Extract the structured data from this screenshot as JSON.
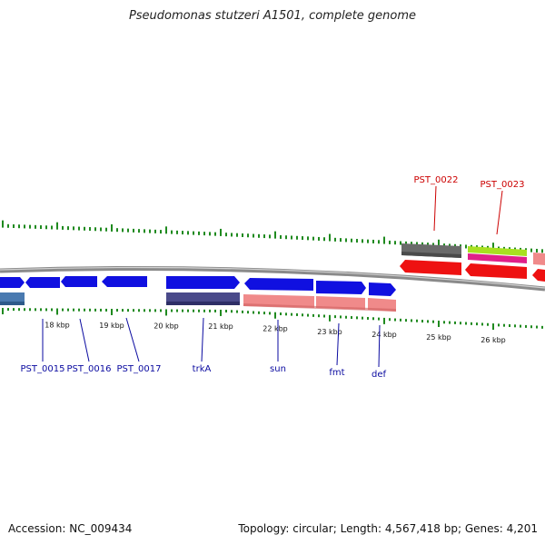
{
  "header": {
    "title": "Pseudomonas stutzeri A1501, complete genome"
  },
  "footer": {
    "accession_label": "Accession:",
    "accession": "NC_009434",
    "topology_label": "Topology:",
    "topology": "circular",
    "length_label": "Length:",
    "length": "4,567,418 bp",
    "genes_label": "Genes:",
    "genes": "4,201"
  },
  "colors": {
    "backbone": "#8a8a8a",
    "tick": "#1f8a1f",
    "forward_cds": "#1010e0",
    "reverse_cds": "#ee1111",
    "rna_pink": "#f08a8a",
    "label_forward": "#0a0aa0",
    "label_reverse": "#cc0000",
    "gray_feature": "#6a6a6a",
    "slate_feature": "#4a4a8a",
    "steel_feature": "#4a7ab0",
    "lime_feature": "#a8e020",
    "magenta_feature": "#e0208a"
  },
  "scale": {
    "tick_labels": [
      {
        "kbp": 18,
        "text": "18 kbp"
      },
      {
        "kbp": 19,
        "text": "19 kbp"
      },
      {
        "kbp": 20,
        "text": "20 kbp"
      },
      {
        "kbp": 21,
        "text": "21 kbp"
      },
      {
        "kbp": 22,
        "text": "22 kbp"
      },
      {
        "kbp": 23,
        "text": "23 kbp"
      },
      {
        "kbp": 24,
        "text": "24 kbp"
      },
      {
        "kbp": 25,
        "text": "25 kbp"
      },
      {
        "kbp": 26,
        "text": "26 kbp"
      }
    ]
  },
  "gene_labels": {
    "forward": [
      {
        "name": "PST_0015"
      },
      {
        "name": "PST_0016"
      },
      {
        "name": "PST_0017"
      },
      {
        "name": "trkA"
      },
      {
        "name": "sun"
      },
      {
        "name": "fmt"
      },
      {
        "name": "def"
      }
    ],
    "reverse": [
      {
        "name": "PST_0022"
      },
      {
        "name": "PST_0023"
      }
    ]
  }
}
